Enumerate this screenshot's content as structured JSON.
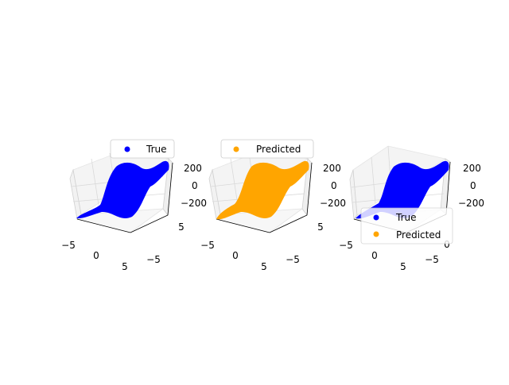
{
  "colors": {
    "true": "#0000ff",
    "predicted": "#ffa500",
    "pane": "#f2f2f2",
    "grid": "#d9d9d9"
  },
  "chart_data": [
    {
      "type": "scatter3d",
      "title": "",
      "legend": {
        "placement": "top-right",
        "entries": [
          "True"
        ]
      },
      "series": [
        {
          "name": "True",
          "color": "#0000ff"
        }
      ],
      "xlim": [
        -5,
        5
      ],
      "ylim": [
        -5,
        5
      ],
      "zlim": [
        -200,
        200
      ],
      "x_ticks": [
        "−5",
        "0",
        "5"
      ],
      "y_ticks": [
        "5",
        "−5"
      ],
      "z_ticks": [
        "200",
        "0",
        "−200"
      ],
      "grid": true
    },
    {
      "type": "scatter3d",
      "title": "",
      "legend": {
        "placement": "top",
        "entries": [
          "Predicted"
        ]
      },
      "series": [
        {
          "name": "Predicted",
          "color": "#ffa500"
        }
      ],
      "xlim": [
        -5,
        5
      ],
      "ylim": [
        -5,
        5
      ],
      "zlim": [
        -200,
        200
      ],
      "x_ticks": [
        "−5",
        "0",
        "5"
      ],
      "y_ticks": [
        "5",
        "−5"
      ],
      "z_ticks": [
        "200",
        "0",
        "−200"
      ],
      "grid": true
    },
    {
      "type": "scatter3d",
      "title": "",
      "legend": {
        "placement": "bottom-right",
        "entries": [
          "True",
          "Predicted"
        ]
      },
      "series": [
        {
          "name": "True",
          "color": "#0000ff"
        },
        {
          "name": "Predicted",
          "color": "#ffa500"
        }
      ],
      "xlim": [
        -5,
        5
      ],
      "ylim": [
        -5,
        5
      ],
      "zlim": [
        -200,
        200
      ],
      "x_ticks": [
        "−5",
        "0",
        "5"
      ],
      "y_ticks": [
        "0",
        "−5"
      ],
      "z_ticks": [
        "200",
        "0",
        "−200"
      ],
      "grid": true
    }
  ]
}
